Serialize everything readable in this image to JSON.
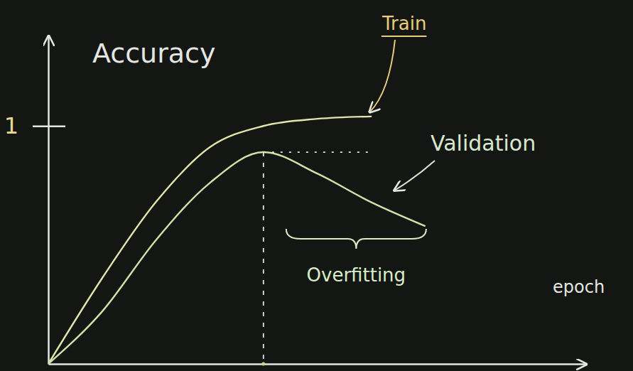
{
  "chart_data": {
    "type": "line",
    "x_label": "epoch",
    "y_label": "Accuracy",
    "x": [
      0,
      1,
      2,
      3,
      4,
      5,
      6,
      7
    ],
    "xlim": [
      0,
      10
    ],
    "ylim": [
      0,
      1.38
    ],
    "yticks": [
      1
    ],
    "tick_labels": "y",
    "series": [
      {
        "name": "Train",
        "color": "#dfe6a8",
        "values": [
          0,
          0.36,
          0.68,
          0.91,
          1,
          1.03,
          1.04,
          null
        ]
      },
      {
        "name": "Validation",
        "color": "#cfe3a6",
        "values": [
          0,
          0.22,
          0.52,
          0.76,
          0.89,
          0.8,
          0.68,
          0.58
        ]
      }
    ],
    "annotations": [
      "Overfitting"
    ]
  }
}
